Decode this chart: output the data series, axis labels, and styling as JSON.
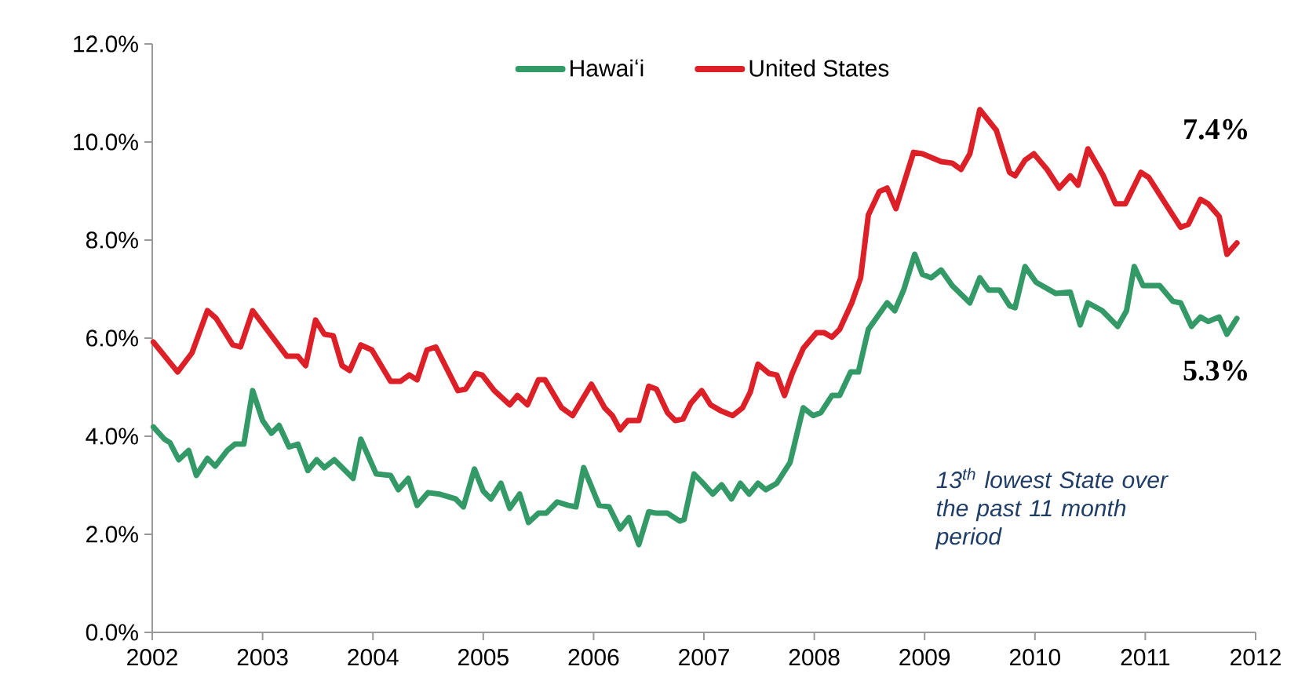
{
  "chart_data": {
    "type": "line",
    "legend": "top",
    "marker": "none",
    "line_style": "solid",
    "grid": false,
    "xlim": [
      2002,
      2012
    ],
    "xticks": [
      2002,
      2003,
      2004,
      2005,
      2006,
      2007,
      2008,
      2009,
      2010,
      2011,
      2012
    ],
    "ylim": [
      0,
      12
    ],
    "yticks": [
      {
        "value": 0,
        "label": "0.0%"
      },
      {
        "value": 2,
        "label": "2.0%"
      },
      {
        "value": 4,
        "label": "4.0%"
      },
      {
        "value": 6,
        "label": "6.0%"
      },
      {
        "value": 8,
        "label": "8.0%"
      },
      {
        "value": 10,
        "label": "10.0%"
      },
      {
        "value": 12,
        "label": "12.0%"
      }
    ],
    "annotations": [
      "7.4%",
      "5.3%",
      "13$^{th}$ lowest State over the past 11 month period"
    ],
    "series": [
      {
        "name": "Hawaiʻi",
        "color": "#339966",
        "x": [
          2002.01,
          2002.11,
          2002.16,
          2002.24,
          2002.33,
          2002.4,
          2002.5,
          2002.57,
          2002.68,
          2002.75,
          2002.83,
          2002.91,
          2003.0,
          2003.08,
          2003.15,
          2003.24,
          2003.32,
          2003.41,
          2003.49,
          2003.56,
          2003.65,
          2003.82,
          2003.89,
          2004.03,
          2004.16,
          2004.23,
          2004.32,
          2004.4,
          2004.5,
          2004.6,
          2004.75,
          2004.82,
          2004.92,
          2005.0,
          2005.07,
          2005.16,
          2005.24,
          2005.33,
          2005.41,
          2005.5,
          2005.57,
          2005.67,
          2005.77,
          2005.84,
          2005.91,
          2006.05,
          2006.14,
          2006.24,
          2006.32,
          2006.41,
          2006.5,
          2006.57,
          2006.67,
          2006.78,
          2006.82,
          2006.91,
          2006.98,
          2007.08,
          2007.16,
          2007.25,
          2007.33,
          2007.41,
          2007.49,
          2007.56,
          2007.66,
          2007.78,
          2007.9,
          2007.99,
          2008.06,
          2008.16,
          2008.23,
          2008.33,
          2008.4,
          2008.49,
          2008.66,
          2008.73,
          2008.81,
          2008.91,
          2008.98,
          2009.06,
          2009.15,
          2009.25,
          2009.41,
          2009.5,
          2009.58,
          2009.68,
          2009.77,
          2009.82,
          2009.91,
          2010.01,
          2010.19,
          2010.32,
          2010.41,
          2010.48,
          2010.61,
          2010.75,
          2010.83,
          2010.9,
          2010.98,
          2011.13,
          2011.25,
          2011.32,
          2011.42,
          2011.5,
          2011.57,
          2011.67,
          2011.74,
          2011.83
        ],
        "values": [
          4.19,
          3.94,
          3.87,
          3.52,
          3.71,
          3.2,
          3.55,
          3.39,
          3.71,
          3.84,
          3.84,
          4.93,
          4.32,
          4.06,
          4.22,
          3.78,
          3.84,
          3.3,
          3.52,
          3.36,
          3.52,
          3.14,
          3.94,
          3.23,
          3.2,
          2.91,
          3.14,
          2.59,
          2.85,
          2.82,
          2.72,
          2.56,
          3.33,
          2.88,
          2.72,
          3.04,
          2.53,
          2.82,
          2.24,
          2.43,
          2.43,
          2.66,
          2.59,
          2.56,
          3.36,
          2.59,
          2.56,
          2.11,
          2.34,
          1.79,
          2.46,
          2.43,
          2.43,
          2.27,
          2.3,
          3.23,
          3.07,
          2.82,
          3.01,
          2.72,
          3.04,
          2.82,
          3.04,
          2.91,
          3.04,
          3.46,
          4.58,
          4.42,
          4.48,
          4.83,
          4.83,
          5.31,
          5.31,
          6.18,
          6.72,
          6.56,
          6.98,
          7.71,
          7.3,
          7.23,
          7.39,
          7.07,
          6.72,
          7.23,
          6.98,
          6.98,
          6.66,
          6.62,
          7.46,
          7.14,
          6.91,
          6.94,
          6.27,
          6.72,
          6.56,
          6.24,
          6.56,
          7.46,
          7.07,
          7.07,
          6.75,
          6.72,
          6.24,
          6.43,
          6.34,
          6.43,
          6.08,
          6.4
        ]
      },
      {
        "name": "United States",
        "color": "#dd2027",
        "x": [
          2002.01,
          2002.23,
          2002.36,
          2002.5,
          2002.58,
          2002.73,
          2002.8,
          2002.91,
          2003.07,
          2003.22,
          2003.32,
          2003.39,
          2003.48,
          2003.56,
          2003.64,
          2003.72,
          2003.79,
          2003.89,
          2003.99,
          2004.16,
          2004.25,
          2004.33,
          2004.4,
          2004.49,
          2004.57,
          2004.77,
          2004.84,
          2004.93,
          2004.99,
          2005.1,
          2005.24,
          2005.31,
          2005.4,
          2005.5,
          2005.56,
          2005.71,
          2005.81,
          2005.98,
          2006.1,
          2006.17,
          2006.24,
          2006.31,
          2006.41,
          2006.5,
          2006.57,
          2006.67,
          2006.74,
          2006.81,
          2006.88,
          2006.98,
          2007.06,
          2007.16,
          2007.26,
          2007.35,
          2007.42,
          2007.49,
          2007.59,
          2007.66,
          2007.73,
          2007.8,
          2007.9,
          2008.02,
          2008.09,
          2008.16,
          2008.23,
          2008.34,
          2008.42,
          2008.49,
          2008.59,
          2008.66,
          2008.74,
          2008.9,
          2008.98,
          2009.15,
          2009.25,
          2009.33,
          2009.41,
          2009.5,
          2009.65,
          2009.77,
          2009.82,
          2009.91,
          2009.99,
          2010.11,
          2010.22,
          2010.32,
          2010.39,
          2010.48,
          2010.62,
          2010.73,
          2010.82,
          2010.96,
          2011.03,
          2011.32,
          2011.39,
          2011.5,
          2011.57,
          2011.67,
          2011.74,
          2011.83
        ],
        "values": [
          5.92,
          5.31,
          5.7,
          6.56,
          6.4,
          5.86,
          5.82,
          6.56,
          6.08,
          5.63,
          5.63,
          5.44,
          6.37,
          6.08,
          6.05,
          5.44,
          5.34,
          5.86,
          5.76,
          5.12,
          5.12,
          5.25,
          5.15,
          5.76,
          5.82,
          4.93,
          4.96,
          5.28,
          5.25,
          4.93,
          4.64,
          4.83,
          4.64,
          5.15,
          5.15,
          4.58,
          4.42,
          5.06,
          4.58,
          4.42,
          4.13,
          4.32,
          4.32,
          5.02,
          4.96,
          4.48,
          4.32,
          4.35,
          4.67,
          4.93,
          4.64,
          4.51,
          4.42,
          4.58,
          4.9,
          5.47,
          5.28,
          5.25,
          4.83,
          5.28,
          5.79,
          6.11,
          6.11,
          6.02,
          6.18,
          6.72,
          7.23,
          8.51,
          8.99,
          9.06,
          8.64,
          9.79,
          9.76,
          9.6,
          9.57,
          9.44,
          9.76,
          10.66,
          10.24,
          9.38,
          9.31,
          9.63,
          9.76,
          9.44,
          9.06,
          9.31,
          9.12,
          9.86,
          9.31,
          8.74,
          8.74,
          9.38,
          9.28,
          8.26,
          8.32,
          8.83,
          8.74,
          8.48,
          7.71,
          7.94
        ]
      }
    ]
  }
}
